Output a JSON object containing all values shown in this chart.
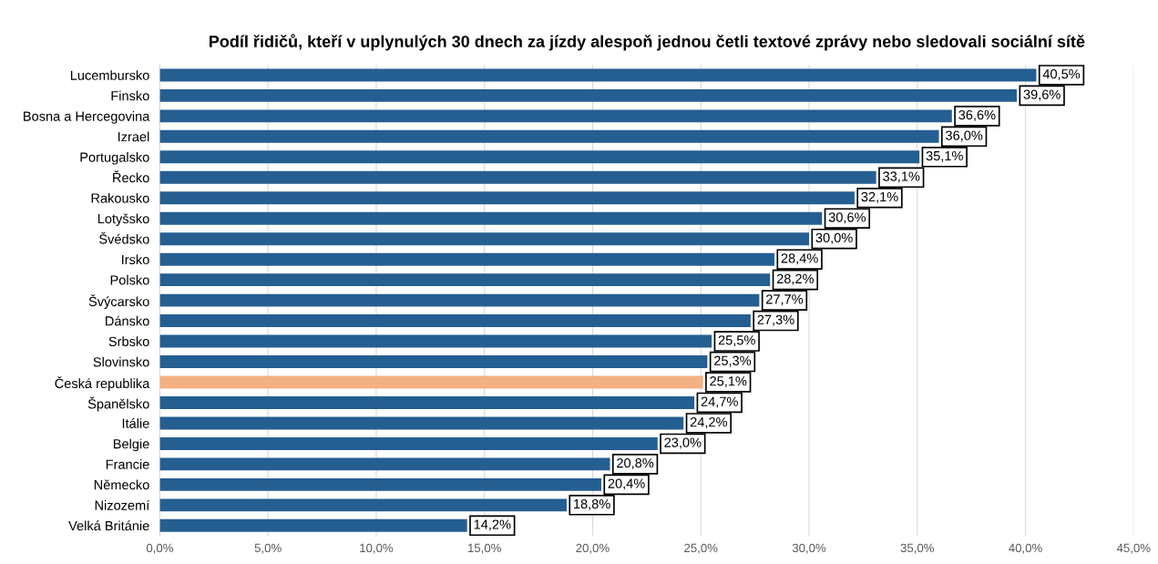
{
  "chart_data": {
    "type": "bar",
    "orientation": "horizontal",
    "title": "Podíl řidičů, kteří v uplynulých 30 dnech za jízdy alespoň jednou četli textové zprávy nebo sledovali sociální sítě",
    "categories": [
      "Lucembursko",
      "Finsko",
      "Bosna a Hercegovina",
      "Izrael",
      "Portugalsko",
      "Řecko",
      "Rakousko",
      "Lotyšsko",
      "Švédsko",
      "Irsko",
      "Polsko",
      "Švýcarsko",
      "Dánsko",
      "Srbsko",
      "Slovinsko",
      "Česká republika",
      "Španělsko",
      "Itálie",
      "Belgie",
      "Francie",
      "Německo",
      "Nizozemí",
      "Velká Británie"
    ],
    "values": [
      40.5,
      39.6,
      36.6,
      36.0,
      35.1,
      33.1,
      32.1,
      30.6,
      30.0,
      28.4,
      28.2,
      27.7,
      27.3,
      25.5,
      25.3,
      25.1,
      24.7,
      24.2,
      23.0,
      20.8,
      20.4,
      18.8,
      14.2
    ],
    "value_labels": [
      "40,5%",
      "39,6%",
      "36,6%",
      "36,0%",
      "35,1%",
      "33,1%",
      "32,1%",
      "30,6%",
      "30,0%",
      "28,4%",
      "28,2%",
      "27,7%",
      "27,3%",
      "25,5%",
      "25,3%",
      "25,1%",
      "24,7%",
      "24,2%",
      "23,0%",
      "20,8%",
      "20,4%",
      "18,8%",
      "14,2%"
    ],
    "colors": [
      "#255e91",
      "#255e91",
      "#255e91",
      "#255e91",
      "#255e91",
      "#255e91",
      "#255e91",
      "#255e91",
      "#255e91",
      "#255e91",
      "#255e91",
      "#255e91",
      "#255e91",
      "#255e91",
      "#255e91",
      "#f4b183",
      "#255e91",
      "#255e91",
      "#255e91",
      "#255e91",
      "#255e91",
      "#255e91",
      "#255e91"
    ],
    "xlim": [
      0,
      45
    ],
    "xticks": [
      {
        "value": 0,
        "label": "0,0%"
      },
      {
        "value": 5,
        "label": "5,0%"
      },
      {
        "value": 10,
        "label": "10,0%"
      },
      {
        "value": 15,
        "label": "15,0%"
      },
      {
        "value": 20,
        "label": "20,0%"
      },
      {
        "value": 25,
        "label": "25,0%"
      },
      {
        "value": 30,
        "label": "30,0%"
      },
      {
        "value": 35,
        "label": "35,0%"
      },
      {
        "value": 40,
        "label": "40,0%"
      },
      {
        "value": 45,
        "label": "45,0%"
      }
    ],
    "grid": "x"
  }
}
